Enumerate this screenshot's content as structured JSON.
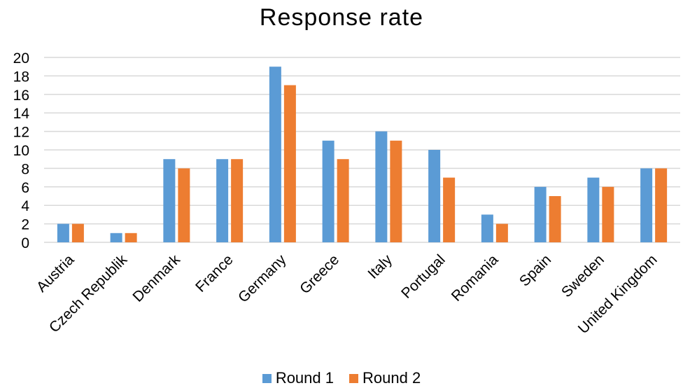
{
  "chart_data": {
    "type": "bar",
    "title": "Response rate",
    "xlabel": "",
    "ylabel": "",
    "categories": [
      "Austria",
      "Czech Republik",
      "Denmark",
      "France",
      "Germany",
      "Greece",
      "Italy",
      "Portugal",
      "Romania",
      "Spain",
      "Sweden",
      "United Kingdom"
    ],
    "series": [
      {
        "name": "Round 1",
        "color": "#5B9BD5",
        "values": [
          2,
          1,
          9,
          9,
          19,
          11,
          12,
          10,
          3,
          6,
          7,
          8
        ]
      },
      {
        "name": "Round 2",
        "color": "#ED7D31",
        "values": [
          2,
          1,
          8,
          9,
          17,
          9,
          11,
          7,
          2,
          5,
          6,
          8
        ]
      }
    ],
    "ylim": [
      0,
      20
    ],
    "yticks": [
      "0",
      "2",
      "4",
      "6",
      "8",
      "10",
      "12",
      "14",
      "16",
      "18",
      "20"
    ],
    "grid": true,
    "legend_position": "bottom"
  }
}
